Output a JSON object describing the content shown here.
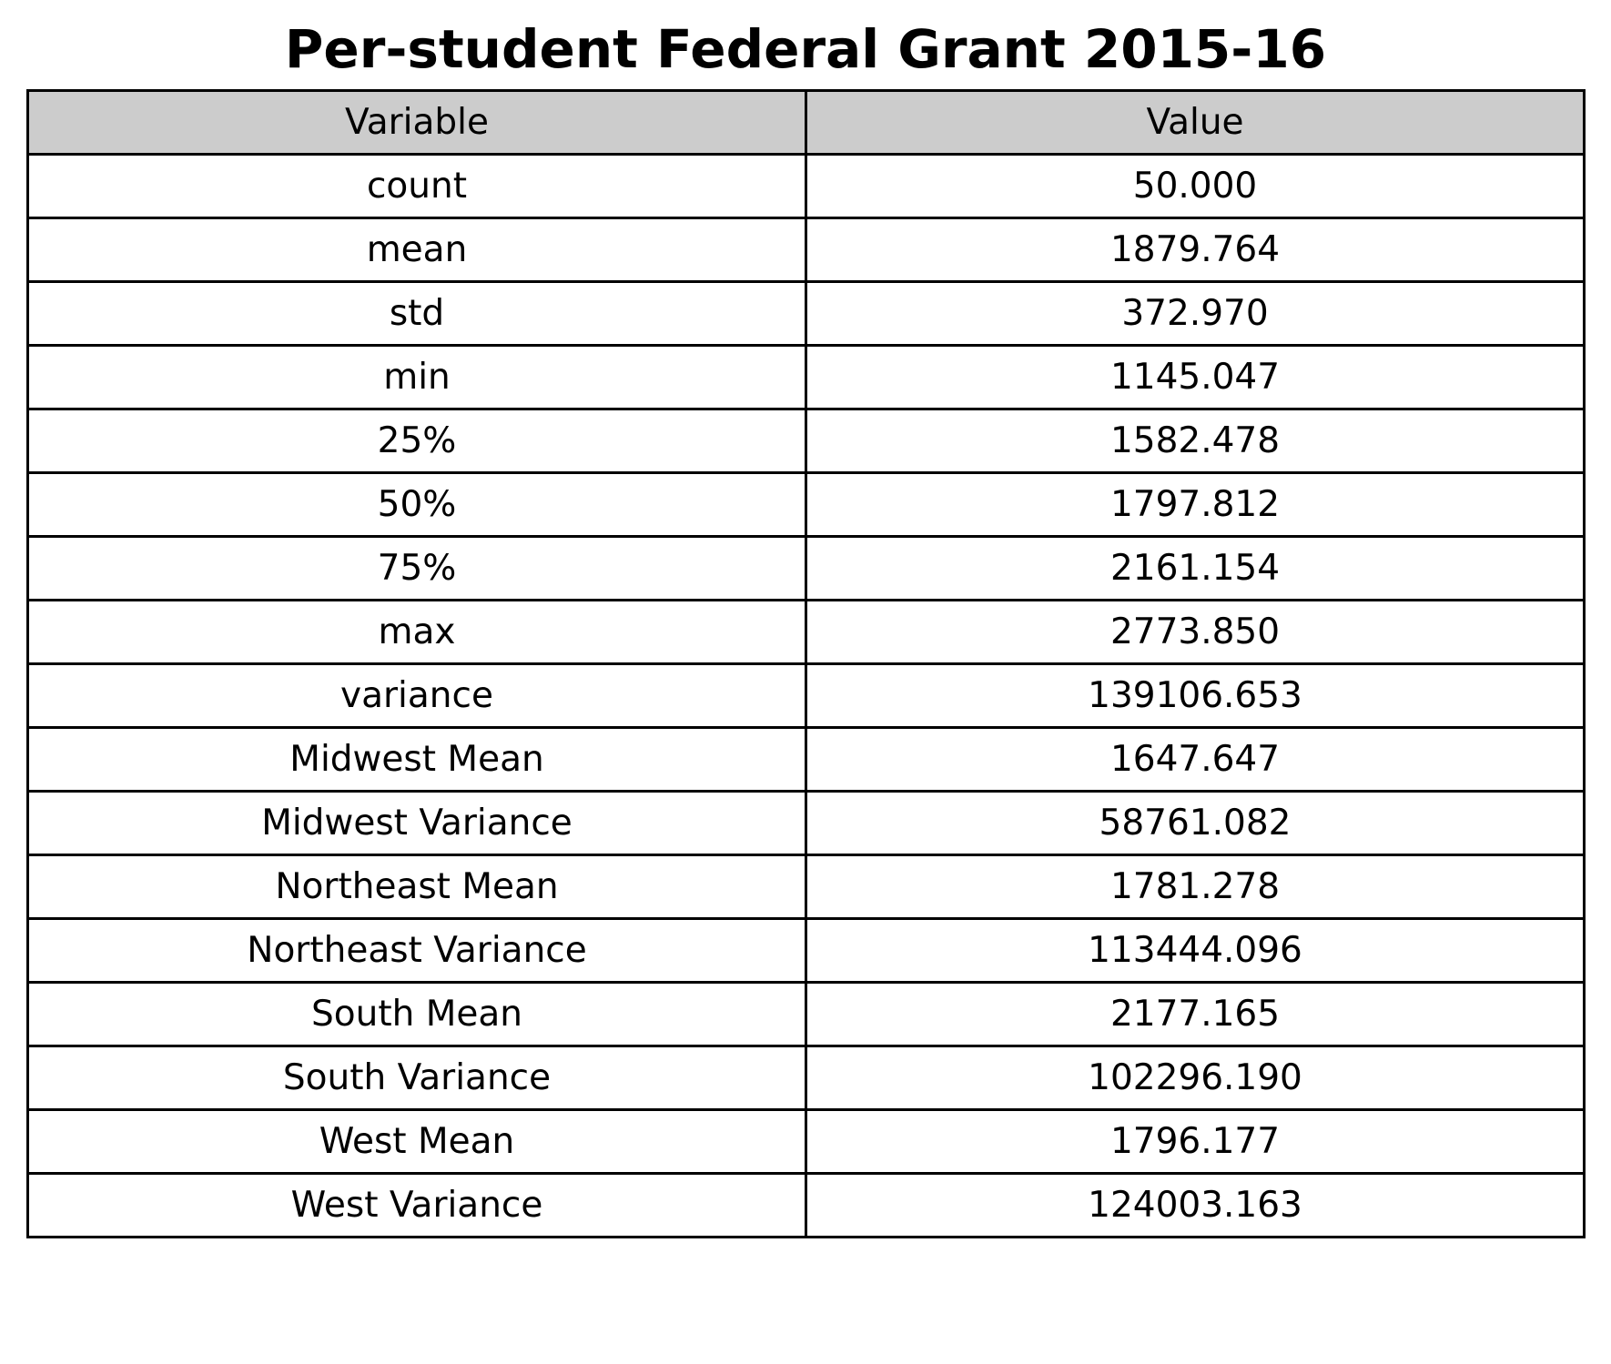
{
  "chart_data": {
    "type": "table",
    "title": "Per-student Federal Grant 2015-16",
    "columns": [
      "Variable",
      "Value"
    ],
    "rows": [
      [
        "count",
        "50.000"
      ],
      [
        "mean",
        "1879.764"
      ],
      [
        "std",
        "372.970"
      ],
      [
        "min",
        "1145.047"
      ],
      [
        "25%",
        "1582.478"
      ],
      [
        "50%",
        "1797.812"
      ],
      [
        "75%",
        "2161.154"
      ],
      [
        "max",
        "2773.850"
      ],
      [
        "variance",
        "139106.653"
      ],
      [
        "Midwest Mean",
        "1647.647"
      ],
      [
        "Midwest Variance",
        "58761.082"
      ],
      [
        "Northeast Mean",
        "1781.278"
      ],
      [
        "Northeast Variance",
        "113444.096"
      ],
      [
        "South Mean",
        "2177.165"
      ],
      [
        "South Variance",
        "102296.190"
      ],
      [
        "West Mean",
        "1796.177"
      ],
      [
        "West Variance",
        "124003.163"
      ]
    ],
    "header_background": "#cccccc",
    "border_color": "#000000"
  }
}
